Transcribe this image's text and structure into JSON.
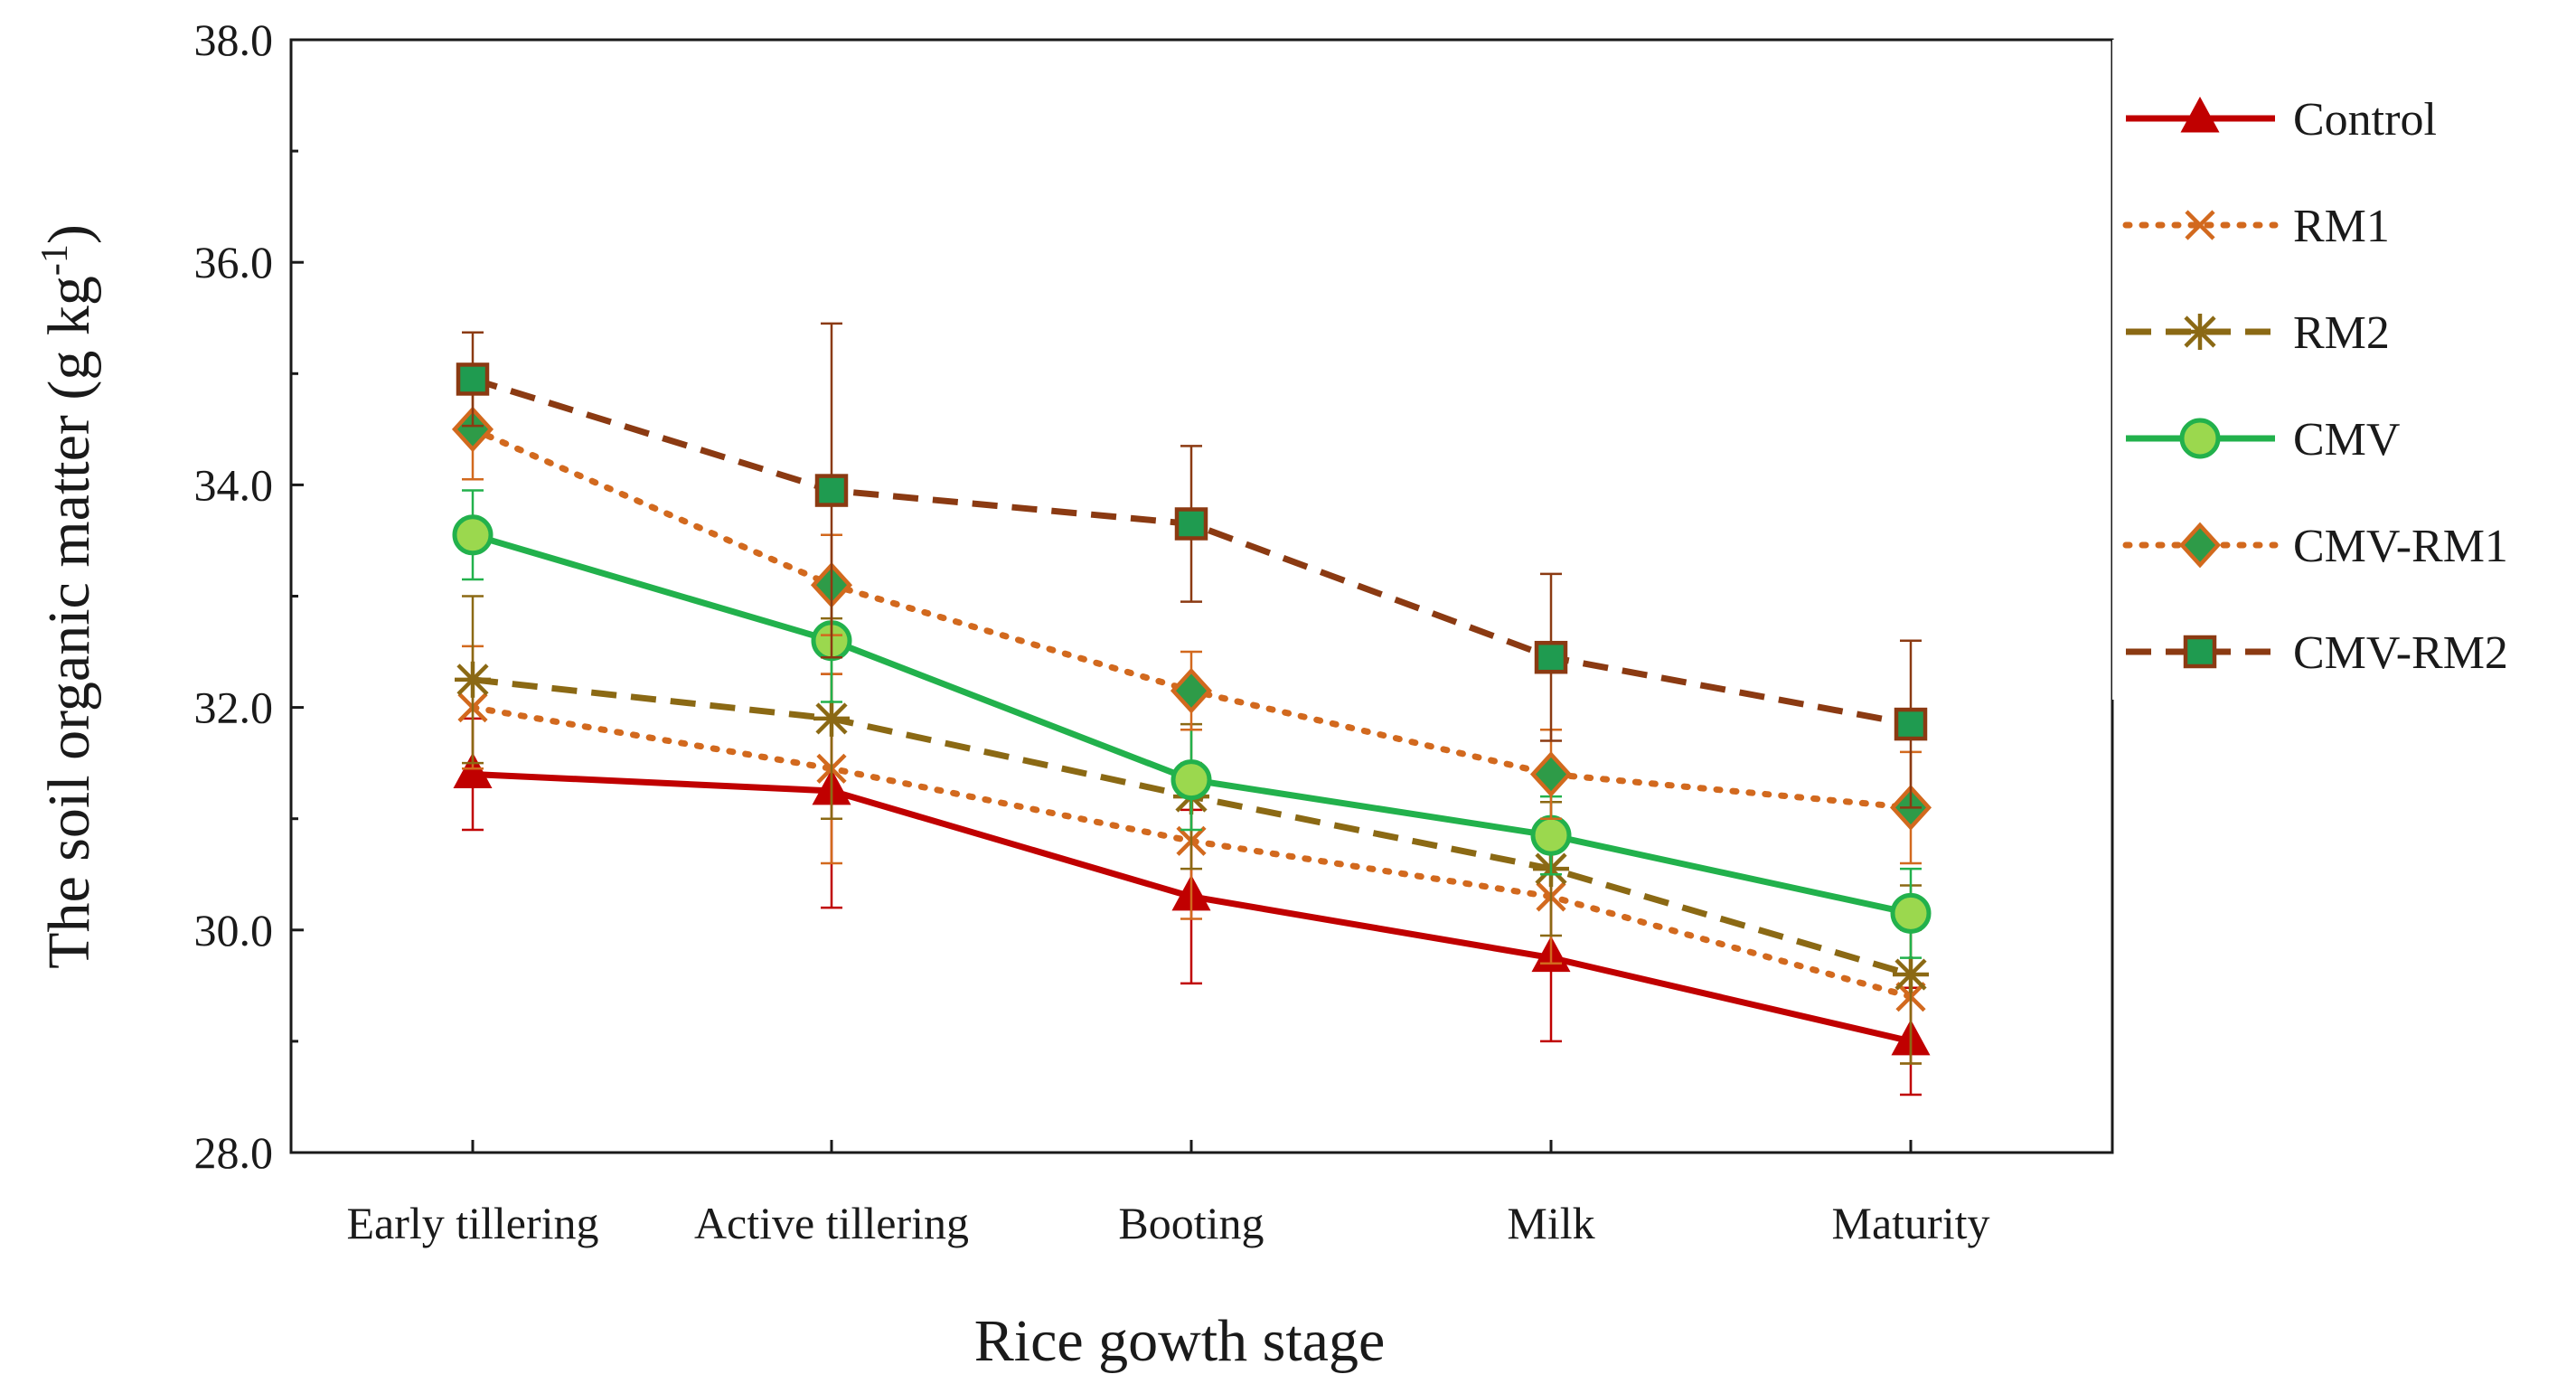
{
  "chart_data": {
    "type": "line",
    "title": "",
    "xlabel": "Rice gowth stage",
    "ylabel": {
      "main": "The  soil organic matter (g  kg",
      "sup": "-1",
      "close": ")"
    },
    "ylim": [
      28.0,
      38.0
    ],
    "yticks": [
      "28.0",
      "30.0",
      "32.0",
      "34.0",
      "36.0",
      "38.0"
    ],
    "categories": [
      "Early tillering",
      "Active tillering",
      "Booting",
      "Milk",
      "Maturity"
    ],
    "legend_position": "right",
    "series": [
      {
        "name": "Control",
        "values": [
          31.4,
          31.25,
          30.3,
          29.75,
          29.0
        ],
        "errors": [
          0.5,
          1.05,
          0.78,
          0.75,
          0.48
        ],
        "color": "#c00000",
        "marker": "triangle",
        "marker_fill": "#c00000",
        "dash": "solid"
      },
      {
        "name": "RM1",
        "values": [
          32.0,
          31.45,
          30.8,
          30.3,
          29.4
        ],
        "errors": [
          0.55,
          0.85,
          0.7,
          0.6,
          0.6
        ],
        "color": "#d2691e",
        "marker": "x",
        "marker_fill": "none",
        "dash": "dotted"
      },
      {
        "name": "RM2",
        "values": [
          32.25,
          31.9,
          31.2,
          30.55,
          29.6
        ],
        "errors": [
          0.75,
          0.9,
          0.65,
          0.6,
          0.8
        ],
        "color": "#8b6914",
        "marker": "star",
        "marker_fill": "none",
        "dash": "dashed"
      },
      {
        "name": "CMV",
        "values": [
          33.55,
          32.6,
          31.35,
          30.85,
          30.15
        ],
        "errors": [
          0.4,
          0.55,
          0.45,
          0.35,
          0.4
        ],
        "color": "#22b14c",
        "marker": "circle",
        "marker_fill": "#9bd84e",
        "dash": "solid"
      },
      {
        "name": "CMV-RM1",
        "values": [
          34.5,
          33.1,
          32.15,
          31.4,
          31.1
        ],
        "errors": [
          0.45,
          0.45,
          0.35,
          0.4,
          0.5
        ],
        "color": "#d2691e",
        "marker": "diamond",
        "marker_fill": "#2e9b48",
        "dash": "dotted"
      },
      {
        "name": "CMV-RM2",
        "values": [
          34.95,
          33.95,
          33.65,
          32.45,
          31.85
        ],
        "errors": [
          0.42,
          1.5,
          0.7,
          0.75,
          0.75
        ],
        "color": "#8b3a12",
        "marker": "square",
        "marker_fill": "#1f9b50",
        "dash": "dashed"
      }
    ]
  }
}
